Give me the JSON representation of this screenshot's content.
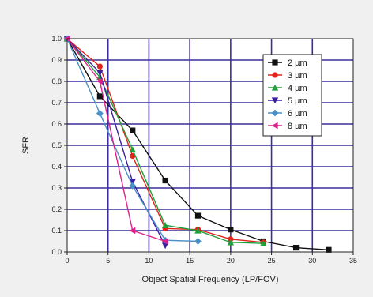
{
  "chart_data": {
    "type": "line",
    "xlabel": "Object Spatial Frequency (LP/FOV)",
    "ylabel": "SFR",
    "xlim": [
      0,
      35
    ],
    "ylim": [
      0,
      1.0
    ],
    "xticks": [
      "0",
      "5",
      "10",
      "15",
      "20",
      "25",
      "30",
      "35"
    ],
    "yticks": [
      "0.0",
      "0.1",
      "0.2",
      "0.3",
      "0.4",
      "0.5",
      "0.6",
      "0.7",
      "0.8",
      "0.9",
      "1.0"
    ],
    "grid": true,
    "grid_color": "#3a2e9c",
    "legend_position": "top-right",
    "series": [
      {
        "name": "2 µm",
        "color": "#111111",
        "marker": "square",
        "x": [
          0,
          4,
          8,
          12,
          16,
          20,
          24,
          28,
          32
        ],
        "y": [
          1.0,
          0.73,
          0.57,
          0.335,
          0.17,
          0.105,
          0.05,
          0.02,
          0.01
        ]
      },
      {
        "name": "3 µm",
        "color": "#e0231b",
        "marker": "circle",
        "x": [
          0,
          4,
          8,
          12,
          16,
          20,
          24
        ],
        "y": [
          1.0,
          0.87,
          0.45,
          0.11,
          0.105,
          0.06,
          0.045
        ]
      },
      {
        "name": "4 µm",
        "color": "#1fa03a",
        "marker": "triangle-up",
        "x": [
          0,
          4,
          8,
          12,
          16,
          20,
          24
        ],
        "y": [
          1.0,
          0.82,
          0.48,
          0.125,
          0.1,
          0.045,
          0.04
        ]
      },
      {
        "name": "5 µm",
        "color": "#3c1fa0",
        "marker": "triangle-down",
        "x": [
          0,
          4,
          8,
          12
        ],
        "y": [
          1.0,
          0.84,
          0.33,
          0.03
        ]
      },
      {
        "name": "6 µm",
        "color": "#4a90c8",
        "marker": "diamond",
        "x": [
          0,
          4,
          8,
          12,
          16
        ],
        "y": [
          1.0,
          0.65,
          0.31,
          0.055,
          0.05
        ]
      },
      {
        "name": "8 µm",
        "color": "#e0208a",
        "marker": "triangle-left",
        "x": [
          0,
          4,
          8,
          12
        ],
        "y": [
          1.0,
          0.8,
          0.1,
          0.05
        ]
      }
    ]
  }
}
